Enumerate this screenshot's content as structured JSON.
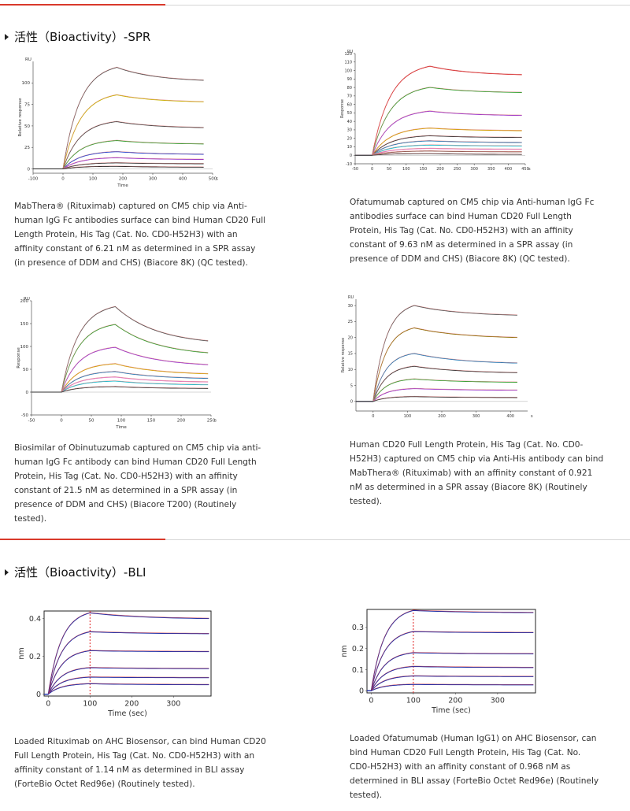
{
  "sections": {
    "spr_title": "活性（Bioactivity）-SPR",
    "bli_title": "活性（Bioactivity）-BLI"
  },
  "colors": {
    "accent": "#d9392b",
    "divider": "#d6d6d6"
  },
  "captions": {
    "spr1": [
      "MabThera® (Rituximab) captured on CM5 chip via Anti-",
      "human IgG Fc antibodies surface can bind Human CD20 Full",
      "Length Protein, His Tag (Cat. No. CD0-H52H3) with an",
      "affinity constant of 6.21 nM as determined in a SPR assay",
      "(in presence of DDM and CHS) (Biacore 8K) (QC tested)."
    ],
    "spr2": [
      "Ofatumumab captured on CM5 chip via Anti-human IgG Fc",
      "antibodies surface can bind Human CD20 Full Length",
      "Protein, His Tag (Cat. No. CD0-H52H3) with an affinity",
      "constant of 9.63 nM as determined in a SPR assay (in",
      "presence of DDM and CHS) (Biacore 8K) (QC tested)."
    ],
    "spr3": [
      "Biosimilar of Obinutuzumab captured on CM5 chip via anti-",
      "human IgG Fc antibody can bind Human CD20 Full Length",
      "Protein, His Tag (Cat. No. CD0-H52H3) with an affinity",
      "constant of 21.5 nM as determined in a SPR assay (in",
      "presence of DDM and CHS) (Biacore T200) (Routinely",
      "tested)."
    ],
    "spr4": [
      "Human CD20 Full Length Protein, His Tag (Cat. No. CD0-",
      "H52H3) captured on CM5 chip via Anti-His antibody can bind",
      "MabThera® (Rituximab) with an affinity constant of 0.921",
      "nM as determined in a SPR assay (Biacore 8K) (Routinely",
      "tested)."
    ],
    "bli1": [
      "Loaded Rituximab on AHC Biosensor, can bind Human CD20",
      "Full Length Protein, His Tag (Cat. No. CD0-H52H3) with an",
      "affinity constant of 1.14 nM as determined in BLI assay",
      "(ForteBio Octet Red96e) (Routinely tested)."
    ],
    "bli2": [
      "Loaded Ofatumumab (Human IgG1) on AHC Biosensor, can",
      "bind Human CD20 Full Length Protein, His Tag (Cat. No.",
      "CD0-H52H3) with an affinity constant of 0.968 nM as",
      "determined in BLI assay (ForteBio Octet Red96e) (Routinely",
      "tested)."
    ]
  },
  "chart_data": [
    {
      "id": "spr1",
      "type": "line",
      "ylabel": "Relative response",
      "xlabel": "Time",
      "unit_label": "RU",
      "x_unit": "s",
      "xlim": [
        -100,
        500
      ],
      "ylim": [
        -5,
        125
      ],
      "xticks": [
        -100,
        0,
        100,
        200,
        300,
        400,
        500
      ],
      "xtick_labels": [
        "-100",
        "0",
        "100",
        "200",
        "300",
        "400",
        "500"
      ],
      "yticks": [
        0,
        25,
        50,
        75,
        100
      ],
      "ytick_labels": [
        "0",
        "25",
        "50",
        "75",
        "100"
      ],
      "assoc_start": 0,
      "dissoc_start": 180,
      "x_end": 470,
      "series": [
        {
          "plateau": 118,
          "end": 103,
          "color": "#555555"
        },
        {
          "plateau": 86,
          "end": 78,
          "color": "#c8b400"
        },
        {
          "plateau": 55,
          "end": 48,
          "color": "#444444"
        },
        {
          "plateau": 33,
          "end": 29,
          "color": "#2ca02c"
        },
        {
          "plateau": 20,
          "end": 17,
          "color": "#1f3fd0"
        },
        {
          "plateau": 13,
          "end": 11,
          "color": "#9933cc"
        },
        {
          "plateau": 7,
          "end": 6,
          "color": "#333333"
        },
        {
          "plateau": 3,
          "end": 2,
          "color": "#222222"
        }
      ]
    },
    {
      "id": "spr2",
      "type": "line",
      "ylabel": "Response",
      "xlabel": "",
      "unit_label": "RU",
      "x_unit": "s",
      "xlim": [
        -50,
        450
      ],
      "ylim": [
        -10,
        120
      ],
      "xticks": [
        -50,
        0,
        50,
        100,
        150,
        200,
        250,
        300,
        350,
        400,
        450
      ],
      "xtick_labels": [
        "-50",
        "0",
        "50",
        "100",
        "150",
        "200",
        "250",
        "300",
        "350",
        "400",
        "450"
      ],
      "yticks": [
        -10,
        0,
        10,
        20,
        30,
        40,
        50,
        60,
        70,
        80,
        90,
        100,
        110,
        120
      ],
      "ytick_labels": [
        "-10",
        "0",
        "10",
        "20",
        "30",
        "40",
        "50",
        "60",
        "70",
        "80",
        "90",
        "100",
        "110",
        "120"
      ],
      "assoc_start": 0,
      "dissoc_start": 170,
      "x_end": 440,
      "series": [
        {
          "plateau": 105,
          "end": 95,
          "color": "#d62728"
        },
        {
          "plateau": 80,
          "end": 74,
          "color": "#2ca02c"
        },
        {
          "plateau": 52,
          "end": 47,
          "color": "#9933cc"
        },
        {
          "plateau": 32,
          "end": 29,
          "color": "#d4a000"
        },
        {
          "plateau": 23,
          "end": 21,
          "color": "#333333"
        },
        {
          "plateau": 17,
          "end": 15,
          "color": "#1f77b4"
        },
        {
          "plateau": 12,
          "end": 11,
          "color": "#17becf"
        },
        {
          "plateau": 8,
          "end": 7,
          "color": "#e377c2"
        },
        {
          "plateau": 5,
          "end": 4,
          "color": "#8c564b"
        },
        {
          "plateau": 2,
          "end": 1,
          "color": "#333333"
        }
      ]
    },
    {
      "id": "spr3",
      "type": "line",
      "ylabel": "Response",
      "xlabel": "Time",
      "unit_label": "RU",
      "x_unit": "s",
      "xlim": [
        -50,
        250
      ],
      "ylim": [
        -50,
        200
      ],
      "xticks": [
        -50,
        0,
        50,
        100,
        150,
        200,
        250
      ],
      "xtick_labels": [
        "-50",
        "0",
        "50",
        "100",
        "150",
        "200",
        "250"
      ],
      "yticks": [
        -50,
        0,
        50,
        100,
        150,
        200
      ],
      "ytick_labels": [
        "-50",
        "0",
        "50",
        "100",
        "150",
        "200"
      ],
      "assoc_start": 0,
      "dissoc_start": 90,
      "x_end": 245,
      "series": [
        {
          "plateau": 187,
          "end": 112,
          "color": "#555555"
        },
        {
          "plateau": 148,
          "end": 86,
          "color": "#2ca02c"
        },
        {
          "plateau": 98,
          "end": 60,
          "color": "#9933cc"
        },
        {
          "plateau": 62,
          "end": 40,
          "color": "#d4a000"
        },
        {
          "plateau": 45,
          "end": 30,
          "color": "#1f77b4"
        },
        {
          "plateau": 33,
          "end": 22,
          "color": "#e377c2"
        },
        {
          "plateau": 24,
          "end": 16,
          "color": "#17becf"
        },
        {
          "plateau": 12,
          "end": 8,
          "color": "#333333"
        }
      ]
    },
    {
      "id": "spr4",
      "type": "line",
      "ylabel": "Relative response",
      "xlabel": "",
      "unit_label": "RU",
      "x_unit": "s",
      "xlim": [
        -50,
        450
      ],
      "ylim": [
        -3,
        32
      ],
      "xticks": [
        0,
        100,
        200,
        300,
        400
      ],
      "xtick_labels": [
        "0",
        "100",
        "200",
        "300",
        "400"
      ],
      "yticks": [
        0,
        5,
        10,
        15,
        20,
        25,
        30
      ],
      "ytick_labels": [
        "0",
        "5",
        "10",
        "15",
        "20",
        "25",
        "30"
      ],
      "assoc_start": 0,
      "dissoc_start": 120,
      "x_end": 420,
      "series": [
        {
          "plateau": 30,
          "end": 27,
          "color": "#555555"
        },
        {
          "plateau": 23,
          "end": 20,
          "color": "#8c6d00"
        },
        {
          "plateau": 15,
          "end": 12,
          "color": "#1f77b4"
        },
        {
          "plateau": 11,
          "end": 9,
          "color": "#333333"
        },
        {
          "plateau": 7,
          "end": 6,
          "color": "#2ca02c"
        },
        {
          "plateau": 4,
          "end": 3.5,
          "color": "#9933cc"
        },
        {
          "plateau": 1.5,
          "end": 1.2,
          "color": "#333333"
        }
      ]
    },
    {
      "id": "bli1",
      "type": "line",
      "ylabel": "nm",
      "xlabel": "Time (sec)",
      "xlim": [
        -10,
        390
      ],
      "ylim": [
        -0.01,
        0.44
      ],
      "xticks": [
        0,
        100,
        200,
        300
      ],
      "xtick_labels": [
        "0",
        "100",
        "200",
        "300"
      ],
      "yticks": [
        0,
        0.2,
        0.4
      ],
      "ytick_labels": [
        "0",
        "0.2",
        "0.4"
      ],
      "assoc_start": 0,
      "dissoc_start": 100,
      "x_end": 385,
      "series": [
        {
          "plateau": 0.43,
          "end": 0.4,
          "color": "#2233aa"
        },
        {
          "plateau": 0.33,
          "end": 0.32,
          "color": "#2233aa"
        },
        {
          "plateau": 0.23,
          "end": 0.225,
          "color": "#2233aa"
        },
        {
          "plateau": 0.14,
          "end": 0.135,
          "color": "#2233aa"
        },
        {
          "plateau": 0.09,
          "end": 0.087,
          "color": "#2233aa"
        },
        {
          "plateau": 0.055,
          "end": 0.05,
          "color": "#2233aa"
        }
      ]
    },
    {
      "id": "bli2",
      "type": "line",
      "ylabel": "nm",
      "xlabel": "Time (sec)",
      "xlim": [
        -10,
        390
      ],
      "ylim": [
        -0.01,
        0.385
      ],
      "xticks": [
        0,
        100,
        200,
        300
      ],
      "xtick_labels": [
        "0",
        "100",
        "200",
        "300"
      ],
      "yticks": [
        0,
        0.1,
        0.2,
        0.3
      ],
      "ytick_labels": [
        "0",
        "0.1",
        "0.2",
        "0.3"
      ],
      "assoc_start": 0,
      "dissoc_start": 100,
      "x_end": 385,
      "series": [
        {
          "plateau": 0.38,
          "end": 0.37,
          "color": "#2233aa"
        },
        {
          "plateau": 0.28,
          "end": 0.275,
          "color": "#2233aa"
        },
        {
          "plateau": 0.18,
          "end": 0.175,
          "color": "#2233aa"
        },
        {
          "plateau": 0.115,
          "end": 0.11,
          "color": "#2233aa"
        },
        {
          "plateau": 0.07,
          "end": 0.067,
          "color": "#2233aa"
        },
        {
          "plateau": 0.03,
          "end": 0.028,
          "color": "#2233aa"
        }
      ]
    }
  ]
}
